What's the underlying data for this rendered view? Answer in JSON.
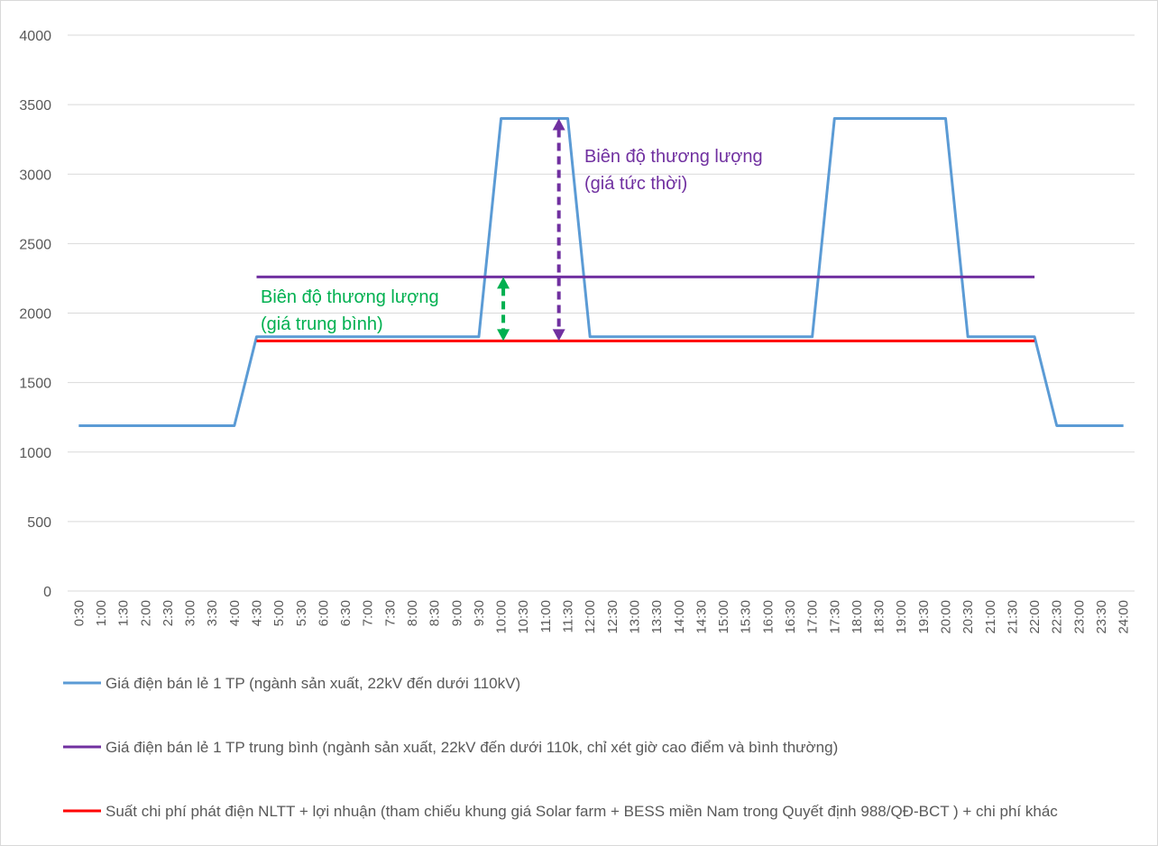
{
  "chart_data": {
    "type": "line",
    "categories": [
      "0:30",
      "1:00",
      "1:30",
      "2:00",
      "2:30",
      "3:00",
      "3:30",
      "4:00",
      "4:30",
      "5:00",
      "5:30",
      "6:00",
      "6:30",
      "7:00",
      "7:30",
      "8:00",
      "8:30",
      "9:00",
      "9:30",
      "10:00",
      "10:30",
      "11:00",
      "11:30",
      "12:00",
      "12:30",
      "13:00",
      "13:30",
      "14:00",
      "14:30",
      "15:00",
      "15:30",
      "16:00",
      "16:30",
      "17:00",
      "17:30",
      "18:00",
      "18:30",
      "19:00",
      "19:30",
      "20:00",
      "20:30",
      "21:00",
      "21:30",
      "22:00",
      "22:30",
      "23:00",
      "23:30",
      "24:00"
    ],
    "series": [
      {
        "name": "Giá điện bán lẻ 1 TP (ngành sản xuất, 22kV đến dưới 110kV)",
        "color": "#5b9bd5",
        "values": [
          1190,
          1190,
          1190,
          1190,
          1190,
          1190,
          1190,
          1190,
          1830,
          1830,
          1830,
          1830,
          1830,
          1830,
          1830,
          1830,
          1830,
          1830,
          1830,
          3400,
          3400,
          3400,
          3400,
          1830,
          1830,
          1830,
          1830,
          1830,
          1830,
          1830,
          1830,
          1830,
          1830,
          1830,
          3400,
          3400,
          3400,
          3400,
          3400,
          3400,
          1830,
          1830,
          1830,
          1830,
          1190,
          1190,
          1190,
          1190
        ]
      },
      {
        "name": "Giá điện bán lẻ 1 TP trung bình (ngành sản xuất, 22kV đến dưới 110k, chỉ xét giờ cao điểm và bình thường)",
        "color": "#7030a0",
        "values": [
          null,
          null,
          null,
          null,
          null,
          null,
          null,
          null,
          2260,
          2260,
          2260,
          2260,
          2260,
          2260,
          2260,
          2260,
          2260,
          2260,
          2260,
          2260,
          2260,
          2260,
          2260,
          2260,
          2260,
          2260,
          2260,
          2260,
          2260,
          2260,
          2260,
          2260,
          2260,
          2260,
          2260,
          2260,
          2260,
          2260,
          2260,
          2260,
          2260,
          2260,
          2260,
          2260,
          null,
          null,
          null,
          null
        ]
      },
      {
        "name": "Suất chi phí phát điện NLTT  + lợi nhuận (tham chiếu khung giá Solar farm + BESS miền Nam trong Quyết định 988/QĐ-BCT ) + chi phí khác",
        "color": "#ff0000",
        "values": [
          null,
          null,
          null,
          null,
          null,
          null,
          null,
          null,
          1800,
          1800,
          1800,
          1800,
          1800,
          1800,
          1800,
          1800,
          1800,
          1800,
          1800,
          1800,
          1800,
          1800,
          1800,
          1800,
          1800,
          1800,
          1800,
          1800,
          1800,
          1800,
          1800,
          1800,
          1800,
          1800,
          1800,
          1800,
          1800,
          1800,
          1800,
          1800,
          1800,
          1800,
          1800,
          1800,
          null,
          null,
          null,
          null
        ]
      }
    ],
    "ylim": [
      0,
      4000
    ],
    "yticks": [
      0,
      500,
      1000,
      1500,
      2000,
      2500,
      3000,
      3500,
      4000
    ],
    "grid": true,
    "annotations": [
      {
        "lines": [
          "Biên độ thương lượng",
          " (giá tức thời)"
        ],
        "color": "#7030a0"
      },
      {
        "lines": [
          "Biên độ thương lượng",
          " (giá trung bình)"
        ],
        "color": "#00b050"
      }
    ]
  }
}
